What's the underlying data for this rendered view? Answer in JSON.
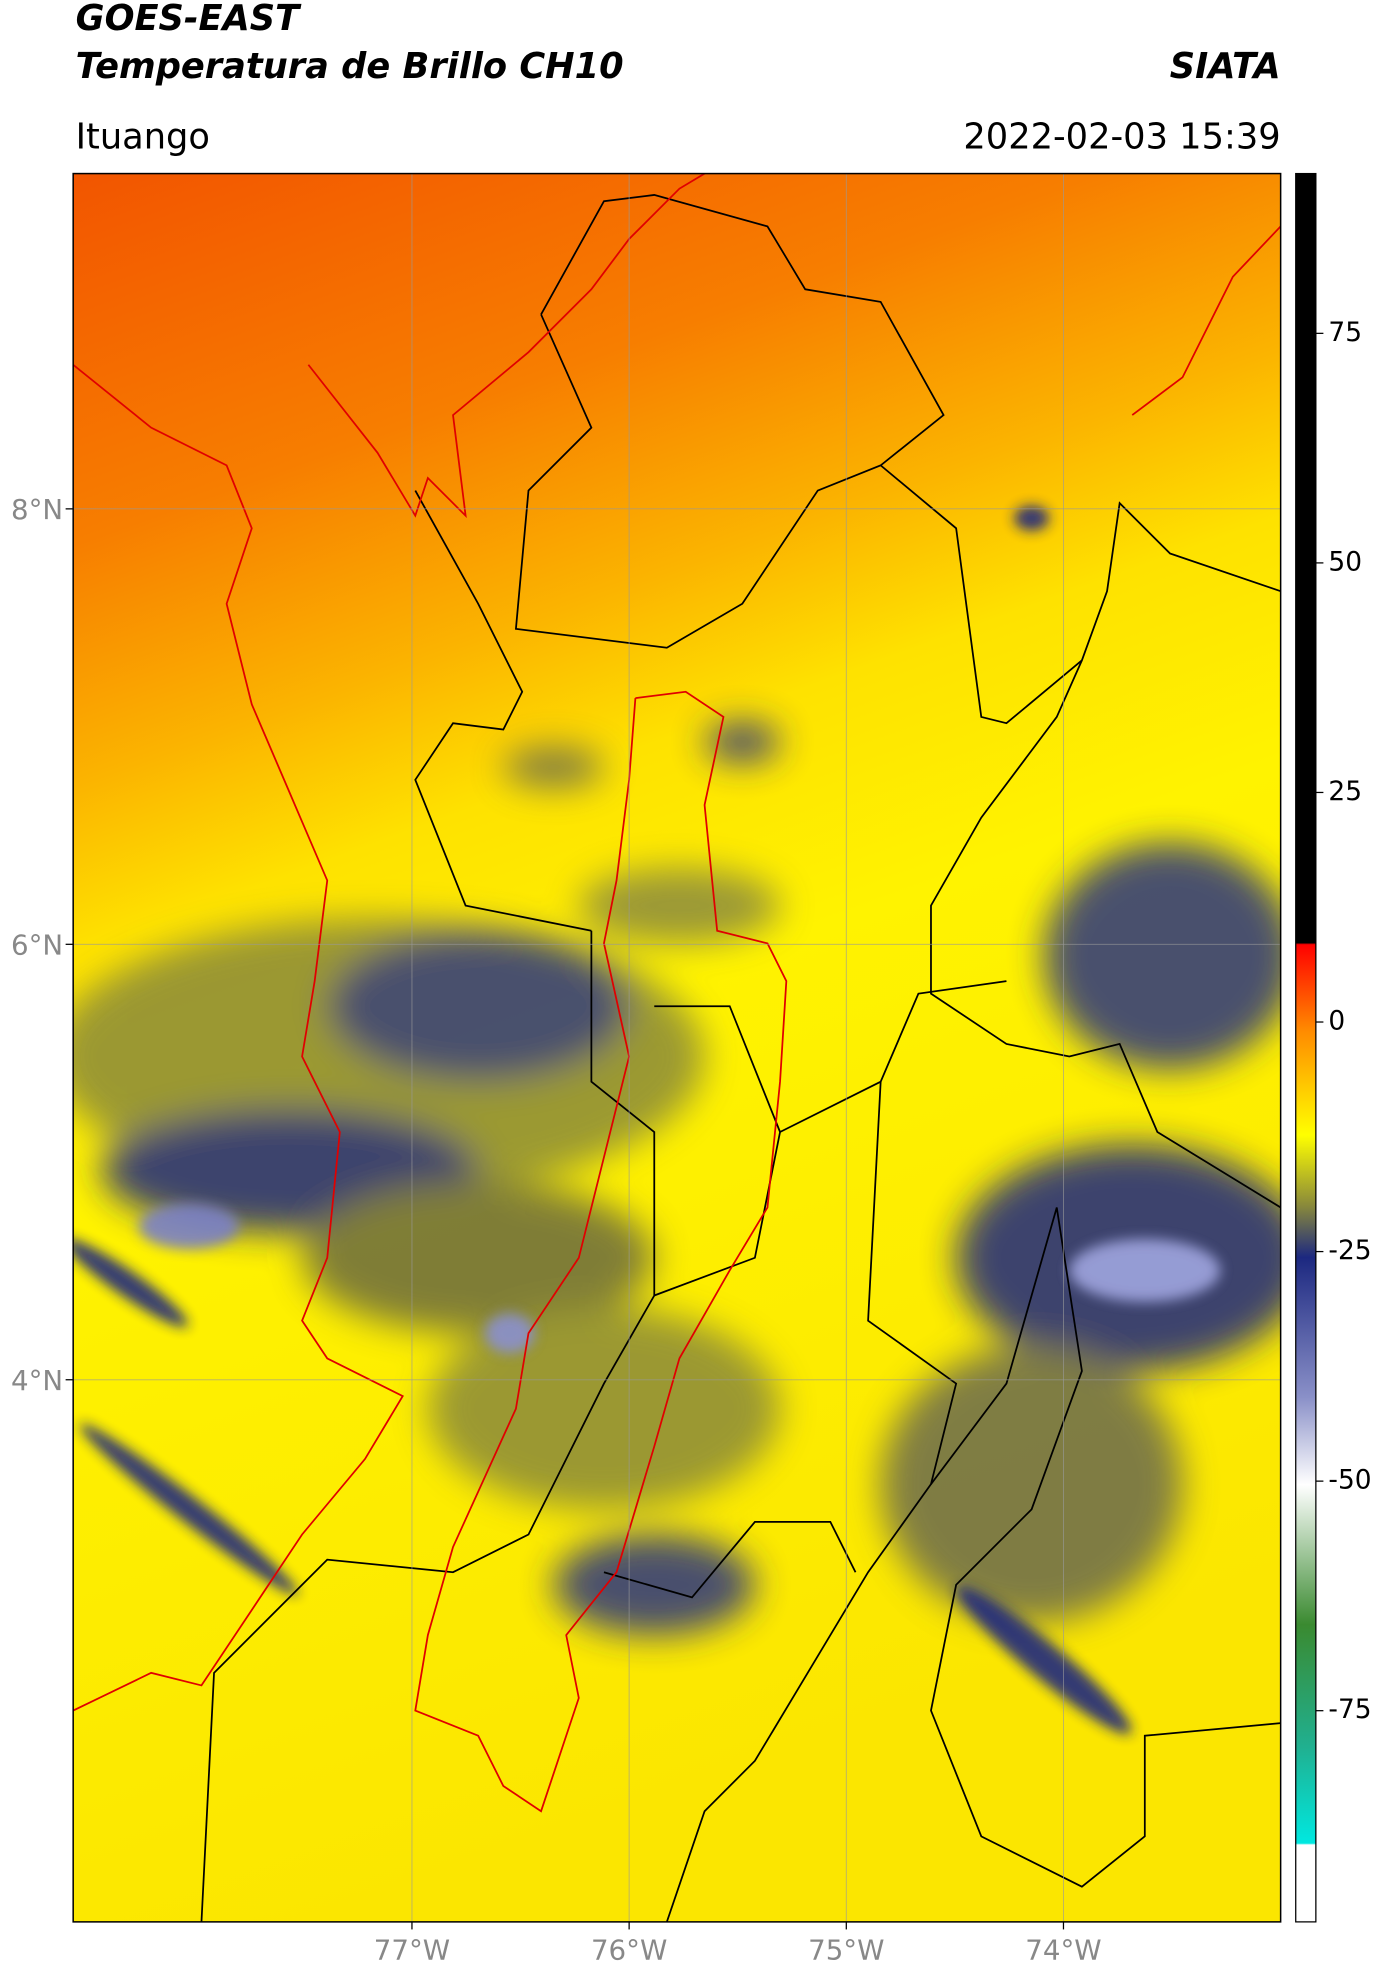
{
  "header": {
    "title_line1": "GOES-EAST",
    "title_line2": "Temperatura de Brillo CH10",
    "agency": "SIATA",
    "location": "Ituango",
    "timestamp": "2022-02-03 15:39"
  },
  "map": {
    "xlim": [
      -78.56,
      -73.0
    ],
    "ylim": [
      1.51,
      9.54
    ],
    "xticks": [
      {
        "value": -77,
        "label": "77°W"
      },
      {
        "value": -76,
        "label": "76°W"
      },
      {
        "value": -75,
        "label": "75°W"
      },
      {
        "value": -74,
        "label": "74°W"
      }
    ],
    "yticks": [
      {
        "value": 8,
        "label": "8°N"
      },
      {
        "value": 6,
        "label": "6°N"
      },
      {
        "value": 4,
        "label": "4°N"
      }
    ],
    "grid": true
  },
  "colorbar": {
    "lim": [
      -98,
      92.4
    ],
    "ticks": [
      75,
      50,
      25,
      0,
      -25,
      -50,
      -75
    ]
  }
}
